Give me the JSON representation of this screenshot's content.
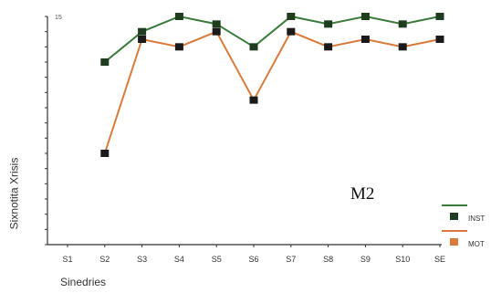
{
  "chart_data": {
    "type": "line",
    "title": "",
    "xlabel": "Sinedries",
    "ylabel": "Sixnotita Xrisis",
    "y_top_tick": "15",
    "categories": [
      "S1",
      "S2",
      "S3",
      "S4",
      "S5",
      "S6",
      "S7",
      "S8",
      "S9",
      "S10",
      "SE"
    ],
    "ylim": [
      0,
      15
    ],
    "y_tick_count": 15,
    "grid": false,
    "legend_position": "bottom-right",
    "annotation": "M2",
    "series": [
      {
        "name": "INST",
        "color": "#3a7a3a",
        "marker_color": "#1e3d1e",
        "values": [
          null,
          12,
          14,
          15,
          14.5,
          13,
          15,
          14.5,
          15,
          14.5,
          15
        ]
      },
      {
        "name": "MOT",
        "color": "#d87a3c",
        "marker_color": "#1a1a1a",
        "values": [
          null,
          6,
          13.5,
          13,
          14,
          9.5,
          14,
          13,
          13.5,
          13,
          13.5
        ]
      }
    ]
  }
}
